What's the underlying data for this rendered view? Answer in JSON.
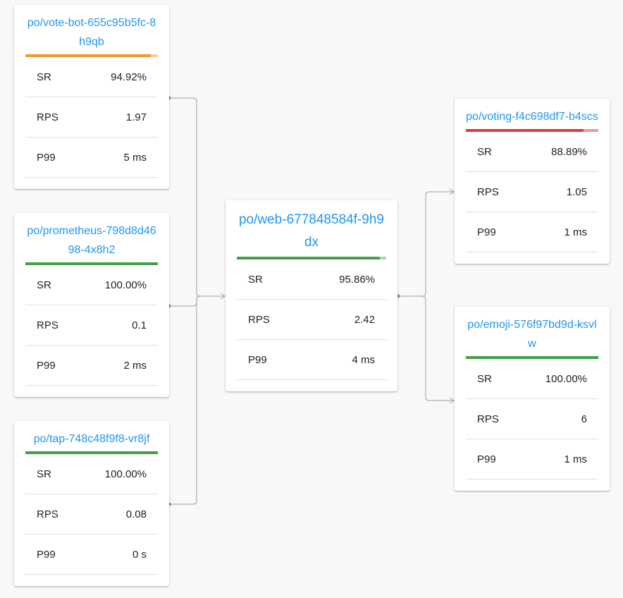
{
  "metric_labels": {
    "sr": "SR",
    "rps": "RPS",
    "p99": "P99"
  },
  "colors": {
    "link": "#2196f3",
    "good": "#43a047",
    "warn": "#f3992a",
    "bad": "#e53935",
    "edge": "#9e9e9e"
  },
  "pods": [
    {
      "id": "vote-bot",
      "name": "po/vote-bot-655c95b5fc-8h9qb",
      "sr": "94.92%",
      "rps": "1.97",
      "p99": "5 ms",
      "sr_fraction": 0.9492,
      "color": "#f3992a",
      "rest_color": "#fad09a"
    },
    {
      "id": "prometheus",
      "name": "po/prometheus-798d8d4698-4x8h2",
      "sr": "100.00%",
      "rps": "0.1",
      "p99": "2 ms",
      "sr_fraction": 1.0,
      "color": "#43a047",
      "rest_color": "#a5d6a7"
    },
    {
      "id": "tap",
      "name": "po/tap-748c48f9f8-vr8jf",
      "sr": "100.00%",
      "rps": "0.08",
      "p99": "0 s",
      "sr_fraction": 1.0,
      "color": "#43a047",
      "rest_color": "#a5d6a7"
    },
    {
      "id": "web",
      "name": "po/web-677848584f-9h9dx",
      "sr": "95.86%",
      "rps": "2.42",
      "p99": "4 ms",
      "sr_fraction": 0.9586,
      "color": "#43a047",
      "rest_color": "#a5d6a7"
    },
    {
      "id": "voting",
      "name": "po/voting-f4c698df7-b4scs",
      "sr": "88.89%",
      "rps": "1.05",
      "p99": "1 ms",
      "sr_fraction": 0.8889,
      "color": "#e53935",
      "rest_color": "#ef9a9a"
    },
    {
      "id": "emoji",
      "name": "po/emoji-576f97bd9d-ksvlw",
      "sr": "100.00%",
      "rps": "6",
      "p99": "1 ms",
      "sr_fraction": 1.0,
      "color": "#43a047",
      "rest_color": "#a5d6a7"
    }
  ]
}
